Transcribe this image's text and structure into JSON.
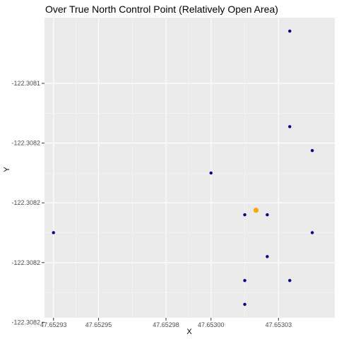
{
  "chart_data": {
    "type": "scatter",
    "title": "Over True North Control Point (Relatively Open Area)",
    "xlabel": "X",
    "ylabel": "Y",
    "grid": true,
    "legend": "none",
    "xlim": [
      47.652926,
      47.653055
    ],
    "ylim": [
      -122.308237,
      -122.308036
    ],
    "x_ticks": [
      {
        "value": 47.65293,
        "label": "47.65293"
      },
      {
        "value": 47.65295,
        "label": "47.65295"
      },
      {
        "value": 47.65298,
        "label": "47.65298"
      },
      {
        "value": 47.653,
        "label": "47.65300"
      },
      {
        "value": 47.65303,
        "label": "47.65303"
      }
    ],
    "y_ticks": [
      {
        "value": -122.30808,
        "label": "-122.3081"
      },
      {
        "value": -122.30812,
        "label": "-122.3082"
      },
      {
        "value": -122.30816,
        "label": "-122.3082"
      },
      {
        "value": -122.3082,
        "label": "-122.3082"
      },
      {
        "value": -122.30824,
        "label": "-122.3082"
      }
    ],
    "series": [
      {
        "color": "#00008b",
        "points": [
          {
            "x": 47.65293,
            "y": -122.30818
          },
          {
            "x": 47.653,
            "y": -122.30814
          },
          {
            "x": 47.653015,
            "y": -122.308168
          },
          {
            "x": 47.653025,
            "y": -122.308168
          },
          {
            "x": 47.653025,
            "y": -122.308196
          },
          {
            "x": 47.653015,
            "y": -122.308212
          },
          {
            "x": 47.653015,
            "y": -122.308228
          },
          {
            "x": 47.653035,
            "y": -122.308212
          },
          {
            "x": 47.653035,
            "y": -122.308109
          },
          {
            "x": 47.653035,
            "y": -122.308045
          },
          {
            "x": 47.653045,
            "y": -122.308125
          },
          {
            "x": 47.653045,
            "y": -122.30818
          }
        ]
      },
      {
        "color": "#ffa500",
        "points": [
          {
            "x": 47.65302,
            "y": -122.308165
          }
        ]
      }
    ]
  }
}
